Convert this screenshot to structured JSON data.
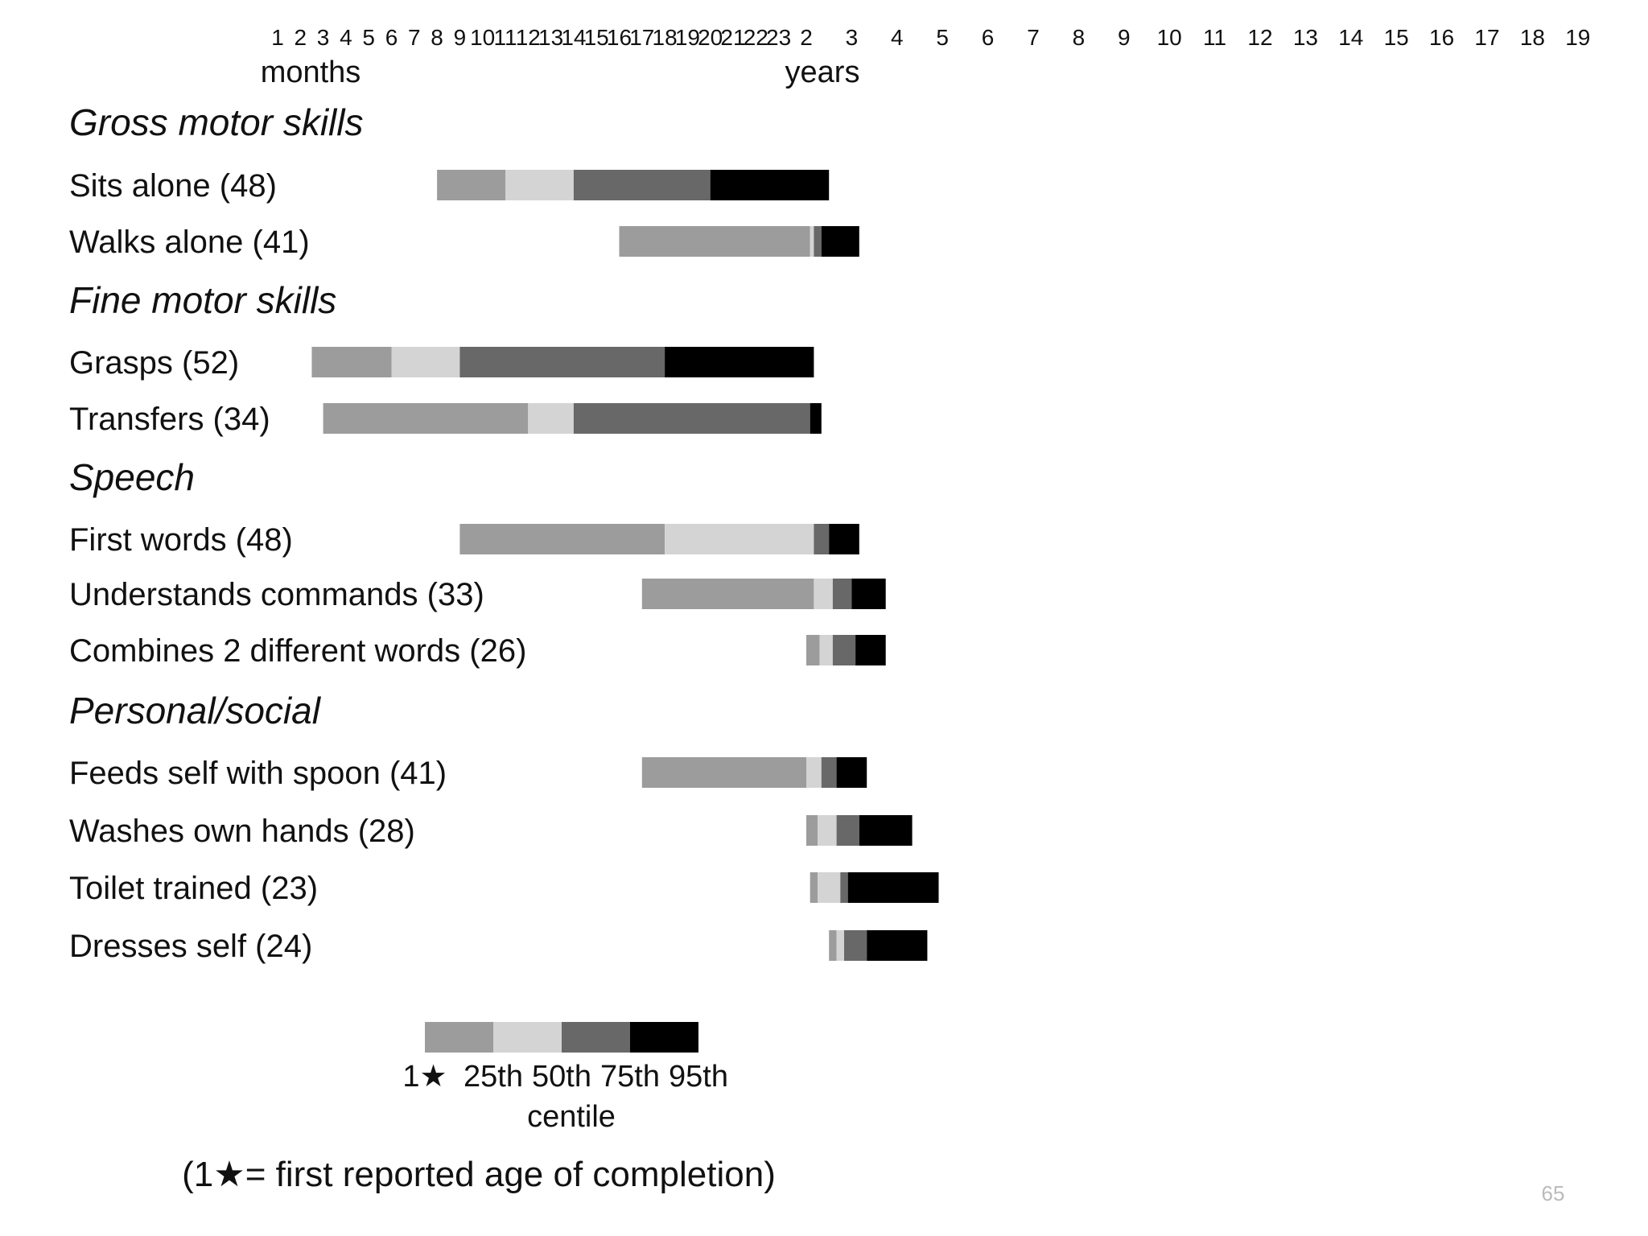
{
  "chart_data": {
    "type": "bar",
    "subtype": "stacked-horizontal-range",
    "axis": {
      "month_ticks": [
        "1",
        "2",
        "3",
        "4",
        "5",
        "6",
        "7",
        "8",
        "9",
        "10",
        "11",
        "12",
        "13",
        "14",
        "15",
        "16",
        "17",
        "18",
        "19",
        "20",
        "21",
        "22",
        "23"
      ],
      "year_ticks": [
        "2",
        "3",
        "4",
        "5",
        "6",
        "7",
        "8",
        "9",
        "10",
        "11",
        "12",
        "13",
        "14",
        "15",
        "16",
        "17",
        "18",
        "19"
      ],
      "months_label": "months",
      "years_label": "years"
    },
    "sections": [
      {
        "title": "Gross motor skills",
        "rows": [
          {
            "label": "Sits alone (48)",
            "values_months": [
              8,
              11,
              14,
              20,
              30
            ]
          },
          {
            "label": "Walks alone (41)",
            "values_months": [
              16,
              25,
              26,
              28,
              38
            ]
          }
        ]
      },
      {
        "title": "Fine motor skills",
        "rows": [
          {
            "label": "Grasps (52)",
            "values_months": [
              2.5,
              6,
              9,
              18,
              26
            ]
          },
          {
            "label": "Transfers (34)",
            "values_months": [
              3,
              12,
              14,
              25,
              28
            ]
          }
        ]
      },
      {
        "title": "Speech",
        "rows": [
          {
            "label": "First words (48)",
            "values_months": [
              9,
              18,
              26,
              30,
              38
            ]
          },
          {
            "label": "Understands commands (33)",
            "values_months": [
              17,
              26,
              31,
              36,
              45
            ]
          },
          {
            "label": "Combines 2 different words (26)",
            "values_months": [
              24,
              27.5,
              31,
              37,
              45
            ]
          }
        ]
      },
      {
        "title": "Personal/social",
        "rows": [
          {
            "label": "Feeds self with spoon (41)",
            "values_months": [
              17,
              24,
              28,
              32,
              40
            ]
          },
          {
            "label": "Washes own hands (28)",
            "values_months": [
              24,
              27,
              32,
              38,
              52
            ]
          },
          {
            "label": "Toilet trained (23)",
            "values_months": [
              25,
              27,
              33,
              35,
              59
            ]
          },
          {
            "label": "Dresses self (24)",
            "values_months": [
              30,
              32,
              34,
              40,
              56
            ]
          }
        ]
      }
    ],
    "legend": {
      "labels": [
        "1★",
        "25th",
        "50th",
        "75th",
        "95th"
      ],
      "caption": "centile",
      "note": "(1★= first reported age of completion)",
      "colors": [
        "#9c9c9c",
        "#d4d4d4",
        "#686868",
        "#000000"
      ]
    },
    "page_number": "65"
  }
}
